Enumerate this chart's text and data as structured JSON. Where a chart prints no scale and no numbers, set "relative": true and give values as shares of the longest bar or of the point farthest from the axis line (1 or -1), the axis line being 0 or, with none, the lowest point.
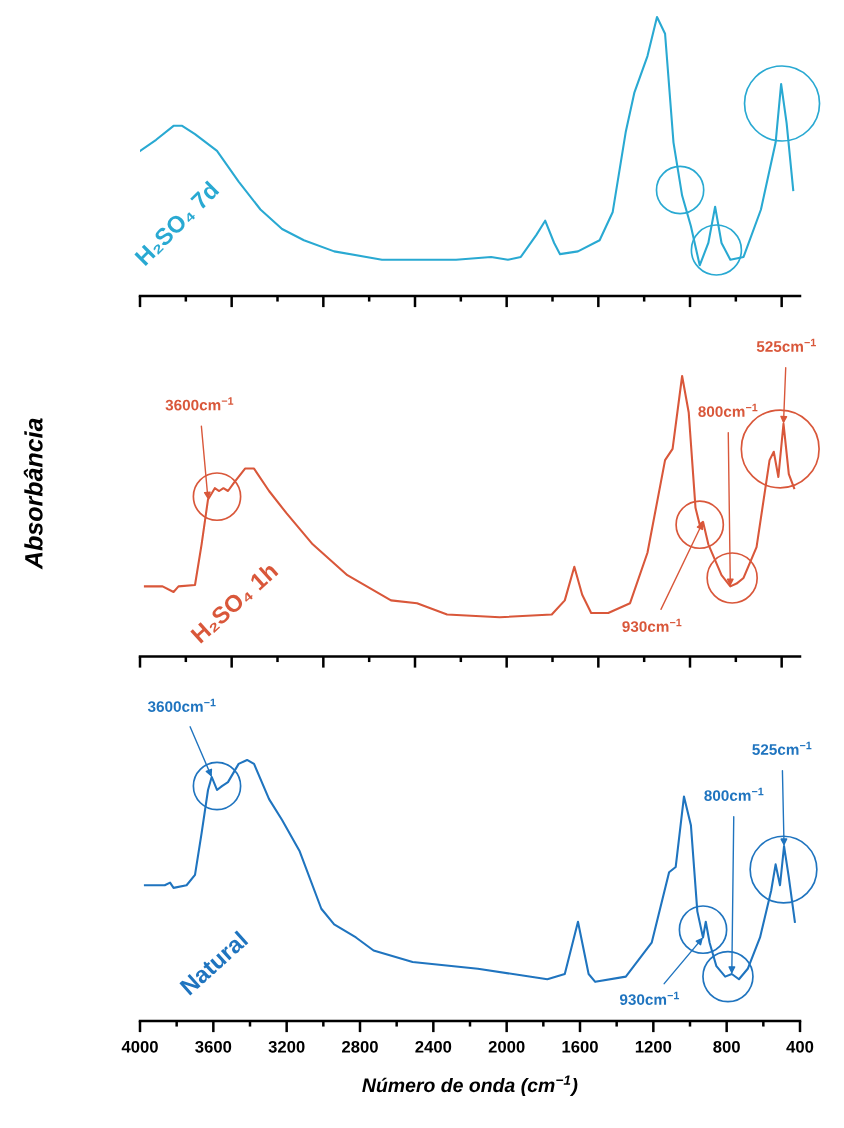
{
  "chart_data": [
    {
      "type": "line",
      "relative": true,
      "xlim": [
        4000,
        400
      ],
      "tick_labels": false,
      "xticks": [
        {
          "value": 4000,
          "label": null
        },
        {
          "value": 3750,
          "label": null
        },
        {
          "value": 3500,
          "label": null
        },
        {
          "value": 3250,
          "label": null
        },
        {
          "value": 3000,
          "label": null
        },
        {
          "value": 2750,
          "label": null
        },
        {
          "value": 2500,
          "label": null
        },
        {
          "value": 2250,
          "label": null
        },
        {
          "value": 2000,
          "label": null
        },
        {
          "value": 1750,
          "label": null
        },
        {
          "value": 1500,
          "label": null
        },
        {
          "value": 1250,
          "label": null
        },
        {
          "value": 1000,
          "label": null
        },
        {
          "value": 750,
          "label": null
        },
        {
          "value": 500,
          "label": null
        }
      ],
      "series": [
        {
          "name": "H₂SO₄ 7d",
          "color": "#29a9d2",
          "x": [
            4000,
            3912,
            3817,
            3770,
            3700,
            3580,
            3462,
            3343,
            3225,
            3106,
            2941,
            2680,
            2276,
            2085,
            1993,
            1923,
            1837,
            1790,
            1741,
            1709,
            1611,
            1493,
            1422,
            1350,
            1303,
            1232,
            1180,
            1136,
            1090,
            1043,
            995,
            947,
            900,
            863,
            828,
            780,
            708,
            613,
            533,
            503,
            473,
            437
          ],
          "values": [
            0.52,
            0.56,
            0.61,
            0.61,
            0.58,
            0.52,
            0.41,
            0.31,
            0.24,
            0.2,
            0.16,
            0.13,
            0.13,
            0.14,
            0.13,
            0.14,
            0.22,
            0.27,
            0.19,
            0.15,
            0.16,
            0.2,
            0.3,
            0.59,
            0.73,
            0.86,
            1.0,
            0.94,
            0.55,
            0.36,
            0.25,
            0.11,
            0.19,
            0.32,
            0.19,
            0.13,
            0.14,
            0.31,
            0.55,
            0.76,
            0.62,
            0.38
          ]
        }
      ]
    },
    {
      "type": "line",
      "relative": true,
      "xlim": [
        4000,
        400
      ],
      "tick_labels": false,
      "ylabel": "Absorbância",
      "xticks": [
        {
          "value": 4000,
          "label": null
        },
        {
          "value": 3750,
          "label": null
        },
        {
          "value": 3500,
          "label": null
        },
        {
          "value": 3250,
          "label": null
        },
        {
          "value": 3000,
          "label": null
        },
        {
          "value": 2750,
          "label": null
        },
        {
          "value": 2500,
          "label": null
        },
        {
          "value": 2250,
          "label": null
        },
        {
          "value": 2000,
          "label": null
        },
        {
          "value": 1750,
          "label": null
        },
        {
          "value": 1500,
          "label": null
        },
        {
          "value": 1250,
          "label": null
        },
        {
          "value": 1000,
          "label": null
        },
        {
          "value": 750,
          "label": null
        },
        {
          "value": 500,
          "label": null
        }
      ],
      "series": [
        {
          "name": "H₂SO₄ 1h",
          "color": "#d9573a",
          "x": [
            3973,
            3877,
            3817,
            3790,
            3700,
            3664,
            3629,
            3592,
            3568,
            3545,
            3520,
            3487,
            3427,
            3378,
            3296,
            3200,
            3058,
            2869,
            2631,
            2489,
            2325,
            2038,
            1754,
            1683,
            1631,
            1588,
            1539,
            1446,
            1327,
            1232,
            1136,
            1095,
            1043,
            1007,
            970,
            947,
            929,
            900,
            828,
            780,
            746,
            708,
            637,
            566,
            543,
            518,
            490,
            461,
            432
          ],
          "values": [
            0.25,
            0.25,
            0.23,
            0.25,
            0.255,
            0.4,
            0.56,
            0.6,
            0.59,
            0.6,
            0.59,
            0.62,
            0.67,
            0.67,
            0.59,
            0.51,
            0.4,
            0.29,
            0.2,
            0.19,
            0.15,
            0.14,
            0.15,
            0.2,
            0.32,
            0.22,
            0.155,
            0.155,
            0.19,
            0.37,
            0.7,
            0.74,
            1.0,
            0.87,
            0.53,
            0.47,
            0.48,
            0.4,
            0.29,
            0.25,
            0.26,
            0.28,
            0.39,
            0.7,
            0.73,
            0.64,
            0.83,
            0.65,
            0.6
          ]
        }
      ],
      "annotations": [
        {
          "text": "3600cm$^{−1}$",
          "x": 3629,
          "y": 0.56
        },
        {
          "text": "930cm$^{−1}$",
          "x": 929,
          "y": 0.48
        },
        {
          "text": "800cm$^{−1}$",
          "x": 780,
          "y": 0.25
        },
        {
          "text": "525cm$^{−1}$",
          "x": 490,
          "y": 0.83
        }
      ]
    },
    {
      "type": "line",
      "relative": true,
      "xlim": [
        4000,
        400
      ],
      "tick_labels": "x",
      "xlabel": "Número de onda (cm$^{−1}$)",
      "xticks": [
        4000,
        {
          "value": 3800,
          "label": null
        },
        3600,
        {
          "value": 3400,
          "label": null
        },
        3200,
        {
          "value": 3000,
          "label": null
        },
        2800,
        {
          "value": 2600,
          "label": null
        },
        2400,
        {
          "value": 2200,
          "label": null
        },
        2000,
        {
          "value": 1800,
          "label": null
        },
        1600,
        {
          "value": 1400,
          "label": null
        },
        1200,
        {
          "value": 1000,
          "label": null
        },
        800,
        {
          "value": 600,
          "label": null
        },
        400
      ],
      "series": [
        {
          "name": "Natural",
          "color": "#1f74bf",
          "x": [
            3973,
            3865,
            3836,
            3817,
            3746,
            3700,
            3664,
            3629,
            3609,
            3580,
            3553,
            3520,
            3462,
            3416,
            3378,
            3296,
            3225,
            3129,
            3011,
            2941,
            2822,
            2726,
            2513,
            2157,
            1778,
            1683,
            1611,
            1553,
            1517,
            1350,
            1209,
            1114,
            1078,
            1033,
            995,
            960,
            929,
            914,
            893,
            856,
            808,
            772,
            733,
            685,
            618,
            557,
            533,
            509,
            487,
            461,
            428
          ],
          "values": [
            0.52,
            0.52,
            0.53,
            0.51,
            0.52,
            0.56,
            0.72,
            0.885,
            0.935,
            0.885,
            0.9,
            0.915,
            0.985,
            1.0,
            0.985,
            0.85,
            0.77,
            0.65,
            0.43,
            0.37,
            0.32,
            0.27,
            0.226,
            0.2,
            0.16,
            0.18,
            0.38,
            0.18,
            0.15,
            0.17,
            0.3,
            0.57,
            0.59,
            0.86,
            0.75,
            0.42,
            0.32,
            0.38,
            0.3,
            0.21,
            0.17,
            0.18,
            0.16,
            0.2,
            0.32,
            0.5,
            0.6,
            0.52,
            0.67,
            0.55,
            0.38
          ]
        }
      ],
      "annotations": [
        {
          "text": "3600cm$^{−1}$",
          "x": 3609,
          "y": 0.935
        },
        {
          "text": "930cm$^{−1}$",
          "x": 929,
          "y": 0.32
        },
        {
          "text": "800cm$^{−1}$",
          "x": 772,
          "y": 0.18
        },
        {
          "text": "525cm$^{−1}$",
          "x": 487,
          "y": 0.67
        }
      ]
    }
  ]
}
